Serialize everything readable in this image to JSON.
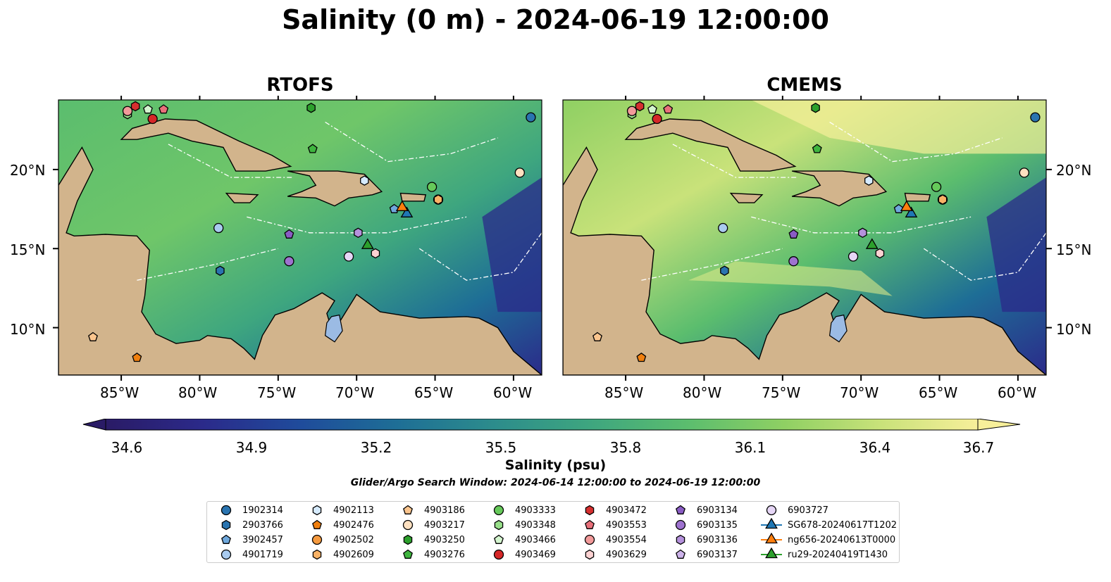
{
  "title": "Salinity (0 m) - 2024-06-19 12:00:00",
  "panels": [
    {
      "title": "RTOFS"
    },
    {
      "title": "CMEMS"
    }
  ],
  "lat_labels": [
    "20°N",
    "15°N",
    "10°N"
  ],
  "lon_labels": [
    "85°W",
    "80°W",
    "75°W",
    "70°W",
    "65°W",
    "60°W"
  ],
  "colorbar": {
    "label": "Salinity (psu)",
    "ticks": [
      "34.6",
      "34.9",
      "35.2",
      "35.5",
      "35.8",
      "36.1",
      "36.4",
      "36.7"
    ],
    "range": [
      34.6,
      36.7
    ],
    "colormap": [
      "#2a1b66",
      "#2b2a8a",
      "#1f4b9b",
      "#1e6e96",
      "#2c8c8c",
      "#3ea67f",
      "#5bbd6e",
      "#8fd063",
      "#c9e27a",
      "#f7ef9a"
    ]
  },
  "search_window": "Glider/Argo Search Window: 2024-06-14 12:00:00 to 2024-06-19 12:00:00",
  "colors": {
    "land": "#d2b48c",
    "lake": "#9bbbe4",
    "ocean_deep": "#2a1b66"
  },
  "legend": [
    {
      "label": "1902314",
      "color": "#2a74b0",
      "shape": "circle"
    },
    {
      "label": "2903766",
      "color": "#2a74b0",
      "shape": "hexagon"
    },
    {
      "label": "3902457",
      "color": "#6fa8dc",
      "shape": "pentagon"
    },
    {
      "label": "4901719",
      "color": "#a9cbef",
      "shape": "circle"
    },
    {
      "label": "4902113",
      "color": "#d6ebff",
      "shape": "hexagon"
    },
    {
      "label": "4902476",
      "color": "#f07f0e",
      "shape": "pentagon"
    },
    {
      "label": "4902502",
      "color": "#f59a3f",
      "shape": "circle"
    },
    {
      "label": "4902609",
      "color": "#f9b266",
      "shape": "hexagon"
    },
    {
      "label": "4903186",
      "color": "#fbc58e",
      "shape": "pentagon"
    },
    {
      "label": "4903217",
      "color": "#fde0c0",
      "shape": "circle"
    },
    {
      "label": "4903250",
      "color": "#2ca02c",
      "shape": "hexagon"
    },
    {
      "label": "4903276",
      "color": "#3fb53f",
      "shape": "pentagon"
    },
    {
      "label": "4903333",
      "color": "#66c95a",
      "shape": "circle"
    },
    {
      "label": "4903348",
      "color": "#98df8a",
      "shape": "hexagon"
    },
    {
      "label": "4903466",
      "color": "#d4f5cf",
      "shape": "pentagon"
    },
    {
      "label": "4903469",
      "color": "#d62728",
      "shape": "circle"
    },
    {
      "label": "4903472",
      "color": "#d62f2f",
      "shape": "hexagon"
    },
    {
      "label": "4903553",
      "color": "#e8707a",
      "shape": "pentagon"
    },
    {
      "label": "4903554",
      "color": "#f29a9a",
      "shape": "circle"
    },
    {
      "label": "4903629",
      "color": "#fcd2d2",
      "shape": "hexagon"
    },
    {
      "label": "6903134",
      "color": "#8a5cc4",
      "shape": "pentagon"
    },
    {
      "label": "6903135",
      "color": "#9e72cf",
      "shape": "circle"
    },
    {
      "label": "6903136",
      "color": "#b591dc",
      "shape": "hexagon"
    },
    {
      "label": "6903137",
      "color": "#cdb3ea",
      "shape": "pentagon"
    },
    {
      "label": "6903727",
      "color": "#e6d6f6",
      "shape": "circle"
    },
    {
      "label": "SG678-20240617T1202",
      "color": "#1f77b4",
      "shape": "triangle"
    },
    {
      "label": "ng656-20240613T0000",
      "color": "#ff7f0e",
      "shape": "triangle"
    },
    {
      "label": "ru29-20240419T1430",
      "color": "#2ca02c",
      "shape": "triangle"
    }
  ],
  "markers": [
    {
      "legend": "1902314",
      "lon": -58.9,
      "lat": 23.3
    },
    {
      "legend": "2903766",
      "lon": -78.7,
      "lat": 13.6
    },
    {
      "legend": "3902457",
      "lon": -67.6,
      "lat": 17.5
    },
    {
      "legend": "4901719",
      "lon": -78.8,
      "lat": 16.3
    },
    {
      "legend": "4902113",
      "lon": -69.5,
      "lat": 19.3
    },
    {
      "legend": "4902476",
      "lon": -84.0,
      "lat": 8.1
    },
    {
      "legend": "4902502",
      "lon": -64.8,
      "lat": 18.1
    },
    {
      "legend": "4902609",
      "lon": -64.8,
      "lat": 18.1
    },
    {
      "legend": "4903186",
      "lon": -86.8,
      "lat": 9.4
    },
    {
      "legend": "4903217",
      "lon": -59.6,
      "lat": 19.8
    },
    {
      "legend": "4903250",
      "lon": -72.9,
      "lat": 23.9
    },
    {
      "legend": "4903276",
      "lon": -72.8,
      "lat": 21.3
    },
    {
      "legend": "4903333",
      "lon": -65.2,
      "lat": 18.9
    },
    {
      "legend": "4903348",
      "lon": -84.6,
      "lat": 23.5
    },
    {
      "legend": "4903466",
      "lon": -83.3,
      "lat": 23.8
    },
    {
      "legend": "4903469",
      "lon": -83.0,
      "lat": 23.2
    },
    {
      "legend": "4903472",
      "lon": -84.1,
      "lat": 24.0
    },
    {
      "legend": "4903553",
      "lon": -82.3,
      "lat": 23.8
    },
    {
      "legend": "4903554",
      "lon": -84.6,
      "lat": 23.7
    },
    {
      "legend": "4903629",
      "lon": -68.8,
      "lat": 14.7
    },
    {
      "legend": "6903134",
      "lon": -74.3,
      "lat": 15.9
    },
    {
      "legend": "6903135",
      "lon": -74.3,
      "lat": 14.2
    },
    {
      "legend": "6903136",
      "lon": -69.9,
      "lat": 16.0
    },
    {
      "legend": "6903137",
      "lon": -70.5,
      "lat": 14.5
    },
    {
      "legend": "6903727",
      "lon": -70.5,
      "lat": 14.5
    },
    {
      "legend": "SG678-20240617T1202",
      "lon": -66.8,
      "lat": 17.2
    },
    {
      "legend": "ng656-20240613T0000",
      "lon": -67.1,
      "lat": 17.6
    },
    {
      "legend": "ru29-20240419T1430",
      "lon": -69.3,
      "lat": 15.2
    }
  ]
}
